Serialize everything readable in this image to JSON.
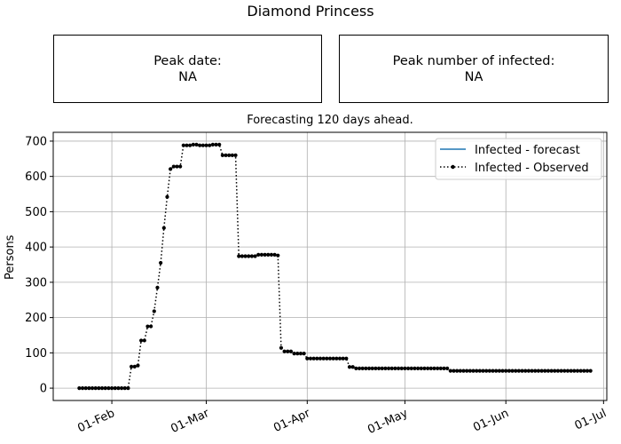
{
  "figure_title": "Diamond Princess",
  "peak_date": {
    "label": "Peak date:",
    "value": "NA"
  },
  "peak_number": {
    "label": "Peak number of infected:",
    "value": "NA"
  },
  "chart_data": {
    "type": "line",
    "title": "Forecasting 120 days ahead.",
    "xlabel": "",
    "ylabel": "Persons",
    "x_ticks": [
      "01-Feb",
      "01-Mar",
      "01-Apr",
      "01-May",
      "01-Jun",
      "01-Jul"
    ],
    "x_range": [
      "2020-01-14",
      "2020-07-02"
    ],
    "ylim": [
      -35,
      725
    ],
    "y_ticks": [
      0,
      100,
      200,
      300,
      400,
      500,
      600,
      700
    ],
    "grid": true,
    "legend_position": "upper right",
    "series": [
      {
        "name": "Infected - forecast",
        "color": "#1f77b4",
        "style": "solid",
        "points": []
      },
      {
        "name": "Infected - Observed",
        "color": "#000000",
        "style": "dotted",
        "marker": "circle",
        "points": [
          [
            "2020-01-22",
            0
          ],
          [
            "2020-01-23",
            0
          ],
          [
            "2020-01-24",
            0
          ],
          [
            "2020-01-25",
            0
          ],
          [
            "2020-01-26",
            0
          ],
          [
            "2020-01-27",
            0
          ],
          [
            "2020-01-28",
            0
          ],
          [
            "2020-01-29",
            0
          ],
          [
            "2020-01-30",
            0
          ],
          [
            "2020-01-31",
            0
          ],
          [
            "2020-02-01",
            0
          ],
          [
            "2020-02-02",
            0
          ],
          [
            "2020-02-03",
            0
          ],
          [
            "2020-02-04",
            0
          ],
          [
            "2020-02-05",
            0
          ],
          [
            "2020-02-06",
            0
          ],
          [
            "2020-02-07",
            61
          ],
          [
            "2020-02-08",
            61
          ],
          [
            "2020-02-09",
            64
          ],
          [
            "2020-02-10",
            135
          ],
          [
            "2020-02-11",
            135
          ],
          [
            "2020-02-12",
            175
          ],
          [
            "2020-02-13",
            175
          ],
          [
            "2020-02-14",
            218
          ],
          [
            "2020-02-15",
            285
          ],
          [
            "2020-02-16",
            355
          ],
          [
            "2020-02-17",
            454
          ],
          [
            "2020-02-18",
            542
          ],
          [
            "2020-02-19",
            621
          ],
          [
            "2020-02-20",
            628
          ],
          [
            "2020-02-21",
            628
          ],
          [
            "2020-02-22",
            628
          ],
          [
            "2020-02-23",
            688
          ],
          [
            "2020-02-24",
            688
          ],
          [
            "2020-02-25",
            688
          ],
          [
            "2020-02-26",
            690
          ],
          [
            "2020-02-27",
            690
          ],
          [
            "2020-02-28",
            688
          ],
          [
            "2020-02-29",
            688
          ],
          [
            "2020-03-01",
            688
          ],
          [
            "2020-03-02",
            688
          ],
          [
            "2020-03-03",
            690
          ],
          [
            "2020-03-04",
            690
          ],
          [
            "2020-03-05",
            690
          ],
          [
            "2020-03-06",
            660
          ],
          [
            "2020-03-07",
            660
          ],
          [
            "2020-03-08",
            660
          ],
          [
            "2020-03-09",
            660
          ],
          [
            "2020-03-10",
            660
          ],
          [
            "2020-03-11",
            374
          ],
          [
            "2020-03-12",
            374
          ],
          [
            "2020-03-13",
            374
          ],
          [
            "2020-03-14",
            374
          ],
          [
            "2020-03-15",
            374
          ],
          [
            "2020-03-16",
            374
          ],
          [
            "2020-03-17",
            378
          ],
          [
            "2020-03-18",
            378
          ],
          [
            "2020-03-19",
            378
          ],
          [
            "2020-03-20",
            378
          ],
          [
            "2020-03-21",
            378
          ],
          [
            "2020-03-22",
            378
          ],
          [
            "2020-03-23",
            376
          ],
          [
            "2020-03-24",
            114
          ],
          [
            "2020-03-25",
            104
          ],
          [
            "2020-03-26",
            104
          ],
          [
            "2020-03-27",
            104
          ],
          [
            "2020-03-28",
            98
          ],
          [
            "2020-03-29",
            98
          ],
          [
            "2020-03-30",
            98
          ],
          [
            "2020-03-31",
            98
          ],
          [
            "2020-04-01",
            84
          ],
          [
            "2020-04-02",
            84
          ],
          [
            "2020-04-03",
            84
          ],
          [
            "2020-04-04",
            84
          ],
          [
            "2020-04-05",
            84
          ],
          [
            "2020-04-06",
            84
          ],
          [
            "2020-04-07",
            84
          ],
          [
            "2020-04-08",
            84
          ],
          [
            "2020-04-09",
            84
          ],
          [
            "2020-04-10",
            84
          ],
          [
            "2020-04-11",
            84
          ],
          [
            "2020-04-12",
            84
          ],
          [
            "2020-04-13",
            84
          ],
          [
            "2020-04-14",
            60
          ],
          [
            "2020-04-15",
            60
          ],
          [
            "2020-04-16",
            56
          ],
          [
            "2020-04-17",
            56
          ],
          [
            "2020-04-18",
            56
          ],
          [
            "2020-04-19",
            56
          ],
          [
            "2020-04-20",
            56
          ],
          [
            "2020-04-21",
            56
          ],
          [
            "2020-04-22",
            56
          ],
          [
            "2020-04-23",
            56
          ],
          [
            "2020-04-24",
            56
          ],
          [
            "2020-04-25",
            56
          ],
          [
            "2020-04-26",
            56
          ],
          [
            "2020-04-27",
            56
          ],
          [
            "2020-04-28",
            56
          ],
          [
            "2020-04-29",
            56
          ],
          [
            "2020-04-30",
            56
          ],
          [
            "2020-05-01",
            56
          ],
          [
            "2020-05-02",
            56
          ],
          [
            "2020-05-03",
            56
          ],
          [
            "2020-05-04",
            56
          ],
          [
            "2020-05-05",
            56
          ],
          [
            "2020-05-06",
            56
          ],
          [
            "2020-05-07",
            56
          ],
          [
            "2020-05-08",
            56
          ],
          [
            "2020-05-09",
            56
          ],
          [
            "2020-05-10",
            56
          ],
          [
            "2020-05-11",
            56
          ],
          [
            "2020-05-12",
            56
          ],
          [
            "2020-05-13",
            56
          ],
          [
            "2020-05-14",
            56
          ],
          [
            "2020-05-15",
            49
          ],
          [
            "2020-05-16",
            49
          ],
          [
            "2020-05-17",
            49
          ],
          [
            "2020-05-18",
            49
          ],
          [
            "2020-05-19",
            49
          ],
          [
            "2020-05-20",
            49
          ],
          [
            "2020-05-21",
            49
          ],
          [
            "2020-05-22",
            49
          ],
          [
            "2020-05-23",
            49
          ],
          [
            "2020-05-24",
            49
          ],
          [
            "2020-05-25",
            49
          ],
          [
            "2020-05-26",
            49
          ],
          [
            "2020-05-27",
            49
          ],
          [
            "2020-05-28",
            49
          ],
          [
            "2020-05-29",
            49
          ],
          [
            "2020-05-30",
            49
          ],
          [
            "2020-05-31",
            49
          ],
          [
            "2020-06-01",
            49
          ],
          [
            "2020-06-02",
            49
          ],
          [
            "2020-06-03",
            49
          ],
          [
            "2020-06-04",
            49
          ],
          [
            "2020-06-05",
            49
          ],
          [
            "2020-06-06",
            49
          ],
          [
            "2020-06-07",
            49
          ],
          [
            "2020-06-08",
            49
          ],
          [
            "2020-06-09",
            49
          ],
          [
            "2020-06-10",
            49
          ],
          [
            "2020-06-11",
            49
          ],
          [
            "2020-06-12",
            49
          ],
          [
            "2020-06-13",
            49
          ],
          [
            "2020-06-14",
            49
          ],
          [
            "2020-06-15",
            49
          ],
          [
            "2020-06-16",
            49
          ],
          [
            "2020-06-17",
            49
          ],
          [
            "2020-06-18",
            49
          ],
          [
            "2020-06-19",
            49
          ],
          [
            "2020-06-20",
            49
          ],
          [
            "2020-06-21",
            49
          ],
          [
            "2020-06-22",
            49
          ],
          [
            "2020-06-23",
            49
          ],
          [
            "2020-06-24",
            49
          ],
          [
            "2020-06-25",
            49
          ],
          [
            "2020-06-26",
            49
          ],
          [
            "2020-06-27",
            49
          ]
        ]
      }
    ]
  }
}
